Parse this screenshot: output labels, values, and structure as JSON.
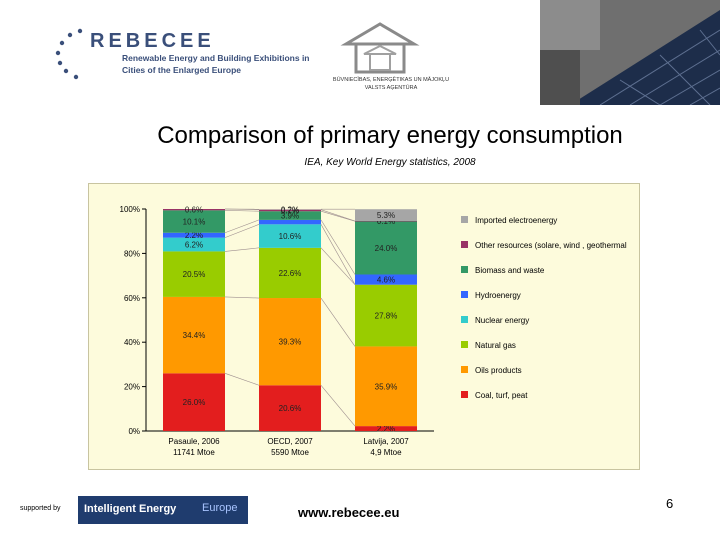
{
  "header": {
    "logo_word": "REBECEE",
    "logo_sub": "Renewable Energy and Building Exhibitions in\nCities of the Enlarged Europe",
    "agency_text": "BŪVNIECĪBAS, ENERĢĒTIKAS UN MĀJOKĻU\nVALSTS AĢENTŪRA"
  },
  "title": "Comparison of primary energy consumption",
  "subtitle": "IEA, Key World Energy statistics, 2008",
  "footer": {
    "supported_by": "supported by",
    "ie_logo_text": "Intelligent Energy",
    "ie_logo_europe": "Europe",
    "website": "www.rebecee.eu",
    "page_number": "6"
  },
  "chart_data": {
    "type": "bar",
    "stacked": true,
    "ylim": [
      0,
      100
    ],
    "yticks": [
      "0%",
      "20%",
      "40%",
      "60%",
      "80%",
      "100%"
    ],
    "categories": [
      "Pasaule, 2006\n11741 Mtoe",
      "OECD, 2007\n5590 Mtoe",
      "Latvija, 2007\n4,9 Mtoe"
    ],
    "series": [
      {
        "name": "Coal, turf, peat",
        "color": "#e31e1e",
        "values": [
          26.0,
          20.6,
          2.2
        ],
        "labels": [
          "26.0%",
          "20.6%",
          "2.2%"
        ]
      },
      {
        "name": "Oils products",
        "color": "#ff9900",
        "values": [
          34.4,
          39.3,
          35.9
        ],
        "labels": [
          "34.4%",
          "39.3%",
          "35.9%"
        ]
      },
      {
        "name": "Natural gas",
        "color": "#99cc00",
        "values": [
          20.5,
          22.6,
          27.8
        ],
        "labels": [
          "20.5%",
          "22.6%",
          "27.8%"
        ]
      },
      {
        "name": "Nuclear energy",
        "color": "#33cccc",
        "values": [
          6.2,
          10.6,
          0
        ],
        "labels": [
          "6.2%",
          "10.6%",
          ""
        ]
      },
      {
        "name": "Hydroenergy",
        "color": "#3366ff",
        "values": [
          2.2,
          2.0,
          4.6
        ],
        "labels": [
          "2.2%",
          "",
          "4.6%"
        ]
      },
      {
        "name": "Biomass and waste",
        "color": "#339966",
        "values": [
          10.1,
          3.9,
          24.0
        ],
        "labels": [
          "10.1%",
          "3.9%",
          "24.0%"
        ]
      },
      {
        "name": "Other resources (solare, wind , geothermal",
        "color": "#993366",
        "values": [
          0.6,
          0.7,
          0.1
        ],
        "labels": [
          "0.6%",
          "0.7%",
          "0.1%"
        ]
      },
      {
        "name": "Imported electroenergy",
        "color": "#a6a6a6",
        "values": [
          0,
          0.2,
          5.3
        ],
        "labels": [
          "",
          "0.2%",
          "5.3%"
        ]
      }
    ],
    "legend_order": [
      "Imported electroenergy",
      "Other resources (solare, wind , geothermal",
      "Biomass and waste",
      "Hydroenergy",
      "Nuclear energy",
      "Natural gas",
      "Oils products",
      "Coal, turf, peat"
    ],
    "legend_position": "right"
  }
}
